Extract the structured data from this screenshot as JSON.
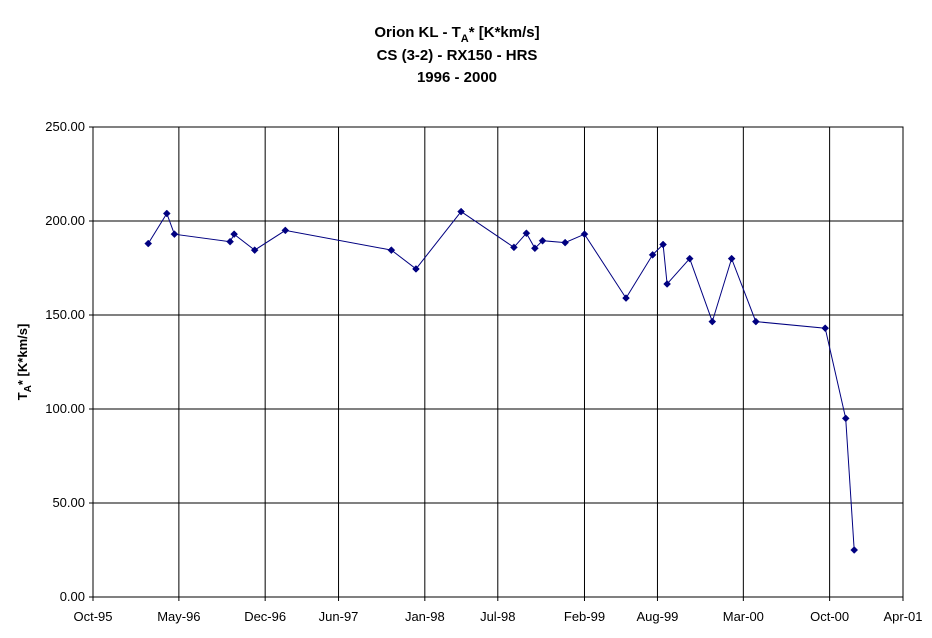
{
  "chart_data": {
    "type": "line",
    "title": {
      "line1_pre": "Orion KL - T",
      "line1_sub": "A",
      "line1_post": "* [K*km/s]",
      "line2": "CS (3-2) - RX150 - HRS",
      "line3": "1996 - 2000"
    },
    "ylabel": {
      "pre": "T",
      "sub": "A",
      "post": "* [K*km/s]"
    },
    "xlabel": "",
    "x_ticks": [
      {
        "date": "1995-10-01",
        "label": "Oct-95"
      },
      {
        "date": "1996-05-01",
        "label": "May-96"
      },
      {
        "date": "1996-12-01",
        "label": "Dec-96"
      },
      {
        "date": "1997-06-01",
        "label": "Jun-97"
      },
      {
        "date": "1998-01-01",
        "label": "Jan-98"
      },
      {
        "date": "1998-07-01",
        "label": "Jul-98"
      },
      {
        "date": "1999-02-01",
        "label": "Feb-99"
      },
      {
        "date": "1999-08-01",
        "label": "Aug-99"
      },
      {
        "date": "2000-03-01",
        "label": "Mar-00"
      },
      {
        "date": "2000-10-01",
        "label": "Oct-00"
      },
      {
        "date": "2001-04-01",
        "label": "Apr-01"
      }
    ],
    "y_ticks": [
      "0.00",
      "50.00",
      "100.00",
      "150.00",
      "200.00",
      "250.00"
    ],
    "ylim": [
      0,
      250
    ],
    "xlim": [
      "1995-10-01",
      "2001-04-01"
    ],
    "grid": true,
    "legend": "none",
    "series": [
      {
        "color": "#000080",
        "points": [
          {
            "x": "1996-02-15",
            "y": 188
          },
          {
            "x": "1996-04-01",
            "y": 204
          },
          {
            "x": "1996-04-20",
            "y": 193
          },
          {
            "x": "1996-09-05",
            "y": 189
          },
          {
            "x": "1996-09-15",
            "y": 193
          },
          {
            "x": "1996-11-05",
            "y": 184.5
          },
          {
            "x": "1997-01-20",
            "y": 195
          },
          {
            "x": "1997-10-10",
            "y": 184.5
          },
          {
            "x": "1997-12-10",
            "y": 174.5
          },
          {
            "x": "1998-04-01",
            "y": 205
          },
          {
            "x": "1998-08-10",
            "y": 186
          },
          {
            "x": "1998-09-10",
            "y": 193.5
          },
          {
            "x": "1998-10-01",
            "y": 185.5
          },
          {
            "x": "1998-10-20",
            "y": 189.5
          },
          {
            "x": "1998-12-15",
            "y": 188.5
          },
          {
            "x": "1999-02-01",
            "y": 193
          },
          {
            "x": "1999-05-15",
            "y": 159
          },
          {
            "x": "1999-07-20",
            "y": 182
          },
          {
            "x": "1999-08-15",
            "y": 187.5
          },
          {
            "x": "1999-08-25",
            "y": 166.5
          },
          {
            "x": "1999-10-20",
            "y": 180
          },
          {
            "x": "1999-12-15",
            "y": 146.5
          },
          {
            "x": "2000-02-01",
            "y": 180
          },
          {
            "x": "2000-04-01",
            "y": 146.5
          },
          {
            "x": "2000-09-20",
            "y": 143
          },
          {
            "x": "2000-11-10",
            "y": 95
          },
          {
            "x": "2000-12-01",
            "y": 25
          }
        ]
      }
    ]
  }
}
